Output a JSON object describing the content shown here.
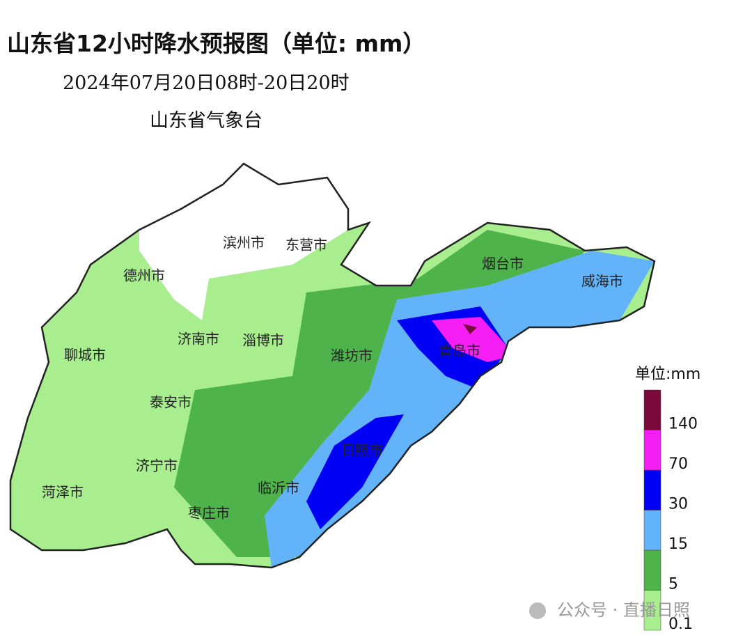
{
  "header": {
    "title": "山东省12小时降水预报图（单位: mm）",
    "period": "2024年07月20日08时-20日20时",
    "issuer": "山东省气象台"
  },
  "map": {
    "cities": [
      "滨州市",
      "东营市",
      "德州市",
      "烟台市",
      "威海市",
      "济南市",
      "淄博市",
      "潍坊市",
      "青岛市",
      "聊城市",
      "泰安市",
      "日照市",
      "济宁市",
      "临沂市",
      "菏泽市",
      "枣庄市"
    ]
  },
  "legend": {
    "title": "单位:mm",
    "ticks": [
      "0.1",
      "5",
      "15",
      "30",
      "70",
      "140"
    ],
    "colors": [
      "#a8ee8f",
      "#4db34a",
      "#63b3fb",
      "#0000f5",
      "#f51ef5",
      "#7a0a3c"
    ]
  },
  "watermark": "公众号 · 直播日照"
}
